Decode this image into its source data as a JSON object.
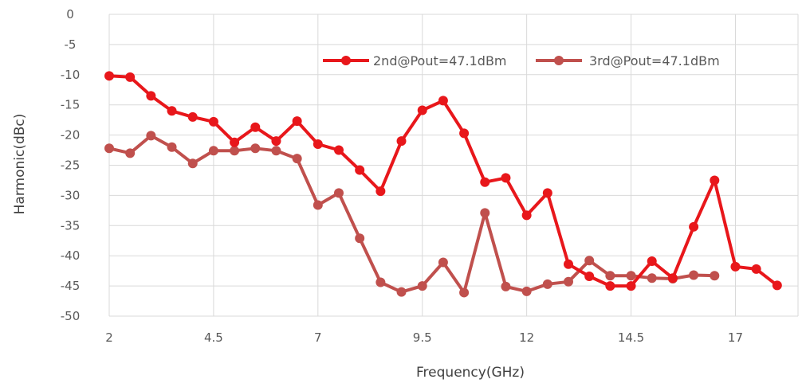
{
  "chart_data": {
    "type": "line",
    "xlabel": "Frequency(GHz)",
    "ylabel": "Harmonic(dBc)",
    "xlim": [
      2,
      18.5
    ],
    "ylim": [
      -50,
      0
    ],
    "x_ticks": [
      "2",
      "4.5",
      "7",
      "9.5",
      "12",
      "14.5",
      "17"
    ],
    "x_tick_values": [
      2,
      4.5,
      7,
      9.5,
      12,
      14.5,
      17
    ],
    "y_ticks": [
      "0",
      "-5",
      "-10",
      "-15",
      "-20",
      "-25",
      "-30",
      "-35",
      "-40",
      "-45",
      "-50"
    ],
    "y_tick_values": [
      0,
      -5,
      -10,
      -15,
      -20,
      -25,
      -30,
      -35,
      -40,
      -45,
      -50
    ],
    "grid": "vertical lines at labeled x ticks, horizontal lines at every y tick",
    "legend_position": "top-right",
    "series": [
      {
        "name": "2nd@Pout=47.1dBm",
        "color": "#e8171b",
        "x": [
          2,
          2.5,
          3,
          3.5,
          4,
          4.5,
          5,
          5.5,
          6,
          6.5,
          7,
          7.5,
          8,
          8.5,
          9,
          9.5,
          10,
          10.5,
          11,
          11.5,
          12,
          12.5,
          13,
          13.5,
          14,
          14.5,
          15,
          15.5,
          16,
          16.5,
          17,
          17.5,
          18
        ],
        "y": [
          -10.2,
          -10.4,
          -13.5,
          -16.0,
          -17.0,
          -17.8,
          -21.2,
          -18.7,
          -21.0,
          -17.7,
          -21.5,
          -22.5,
          -25.8,
          -29.3,
          -21.0,
          -15.9,
          -14.3,
          -19.7,
          -27.8,
          -27.1,
          -33.3,
          -29.6,
          -41.4,
          -43.4,
          -45.0,
          -45.0,
          -40.9,
          -43.7,
          -35.2,
          -27.5,
          -41.8,
          -42.2,
          -44.9
        ]
      },
      {
        "name": "3rd@Pout=47.1dBm",
        "color": "#c0504d",
        "x": [
          2,
          2.5,
          3,
          3.5,
          4,
          4.5,
          5,
          5.5,
          6,
          6.5,
          7,
          7.5,
          8,
          8.5,
          9,
          9.5,
          10,
          10.5,
          11,
          11.5,
          12,
          12.5,
          13,
          13.5,
          14,
          14.5,
          15,
          15.5,
          16,
          16.5
        ],
        "y": [
          -22.2,
          -23.0,
          -20.1,
          -22.0,
          -24.7,
          -22.6,
          -22.6,
          -22.2,
          -22.6,
          -23.9,
          -31.6,
          -29.6,
          -37.1,
          -44.4,
          -46.0,
          -45.0,
          -41.1,
          -46.1,
          -32.9,
          -45.1,
          -45.9,
          -44.7,
          -44.3,
          -40.8,
          -43.3,
          -43.3,
          -43.7,
          -43.8,
          -43.2,
          -43.3
        ]
      }
    ]
  }
}
